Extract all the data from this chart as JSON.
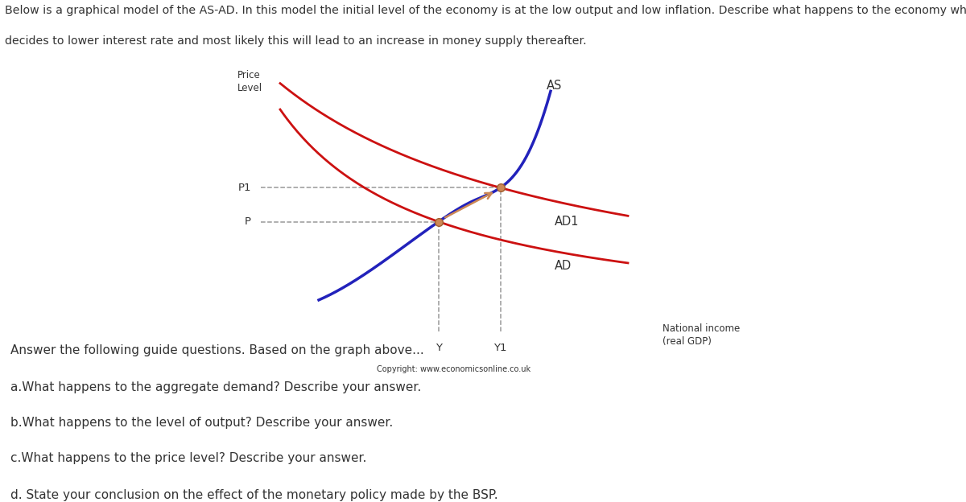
{
  "header_line1": "Below is a graphical model of the AS-AD. In this model the initial level of the economy is at the low output and low inflation. Describe what happens to the economy when the BSP",
  "header_line2": "decides to lower interest rate and most likely this will lead to an increase in money supply thereafter.",
  "ylabel": "Price\nLevel",
  "xlabel": "National income\n(real GDP)",
  "copyright": "Copyright: www.economicsonline.co.uk",
  "label_P1": "P1",
  "label_P": "P",
  "label_Y": "Y",
  "label_Y1": "Y1",
  "label_AS": "AS",
  "label_AD": "AD",
  "label_AD1": "AD1",
  "as_color": "#2222bb",
  "ad_color": "#cc1111",
  "dashed_color": "#999999",
  "dot_color": "#cc8855",
  "arrow_color": "#cc8855",
  "text_color": "#333333",
  "bg_color": "#ffffff",
  "questions": [
    "Answer the following guide questions. Based on the graph above...",
    "a.What happens to the aggregate demand? Describe your answer.",
    "b.What happens to the level of output? Describe your answer.",
    "c.What happens to the price level? Describe your answer.",
    "d. State your conclusion on the effect of the monetary policy made by the BSP."
  ],
  "xlim": [
    0,
    10
  ],
  "ylim": [
    0,
    10
  ],
  "Y_val": 4.6,
  "Y1_val": 6.2,
  "P_val": 4.2,
  "P1_val": 5.5
}
